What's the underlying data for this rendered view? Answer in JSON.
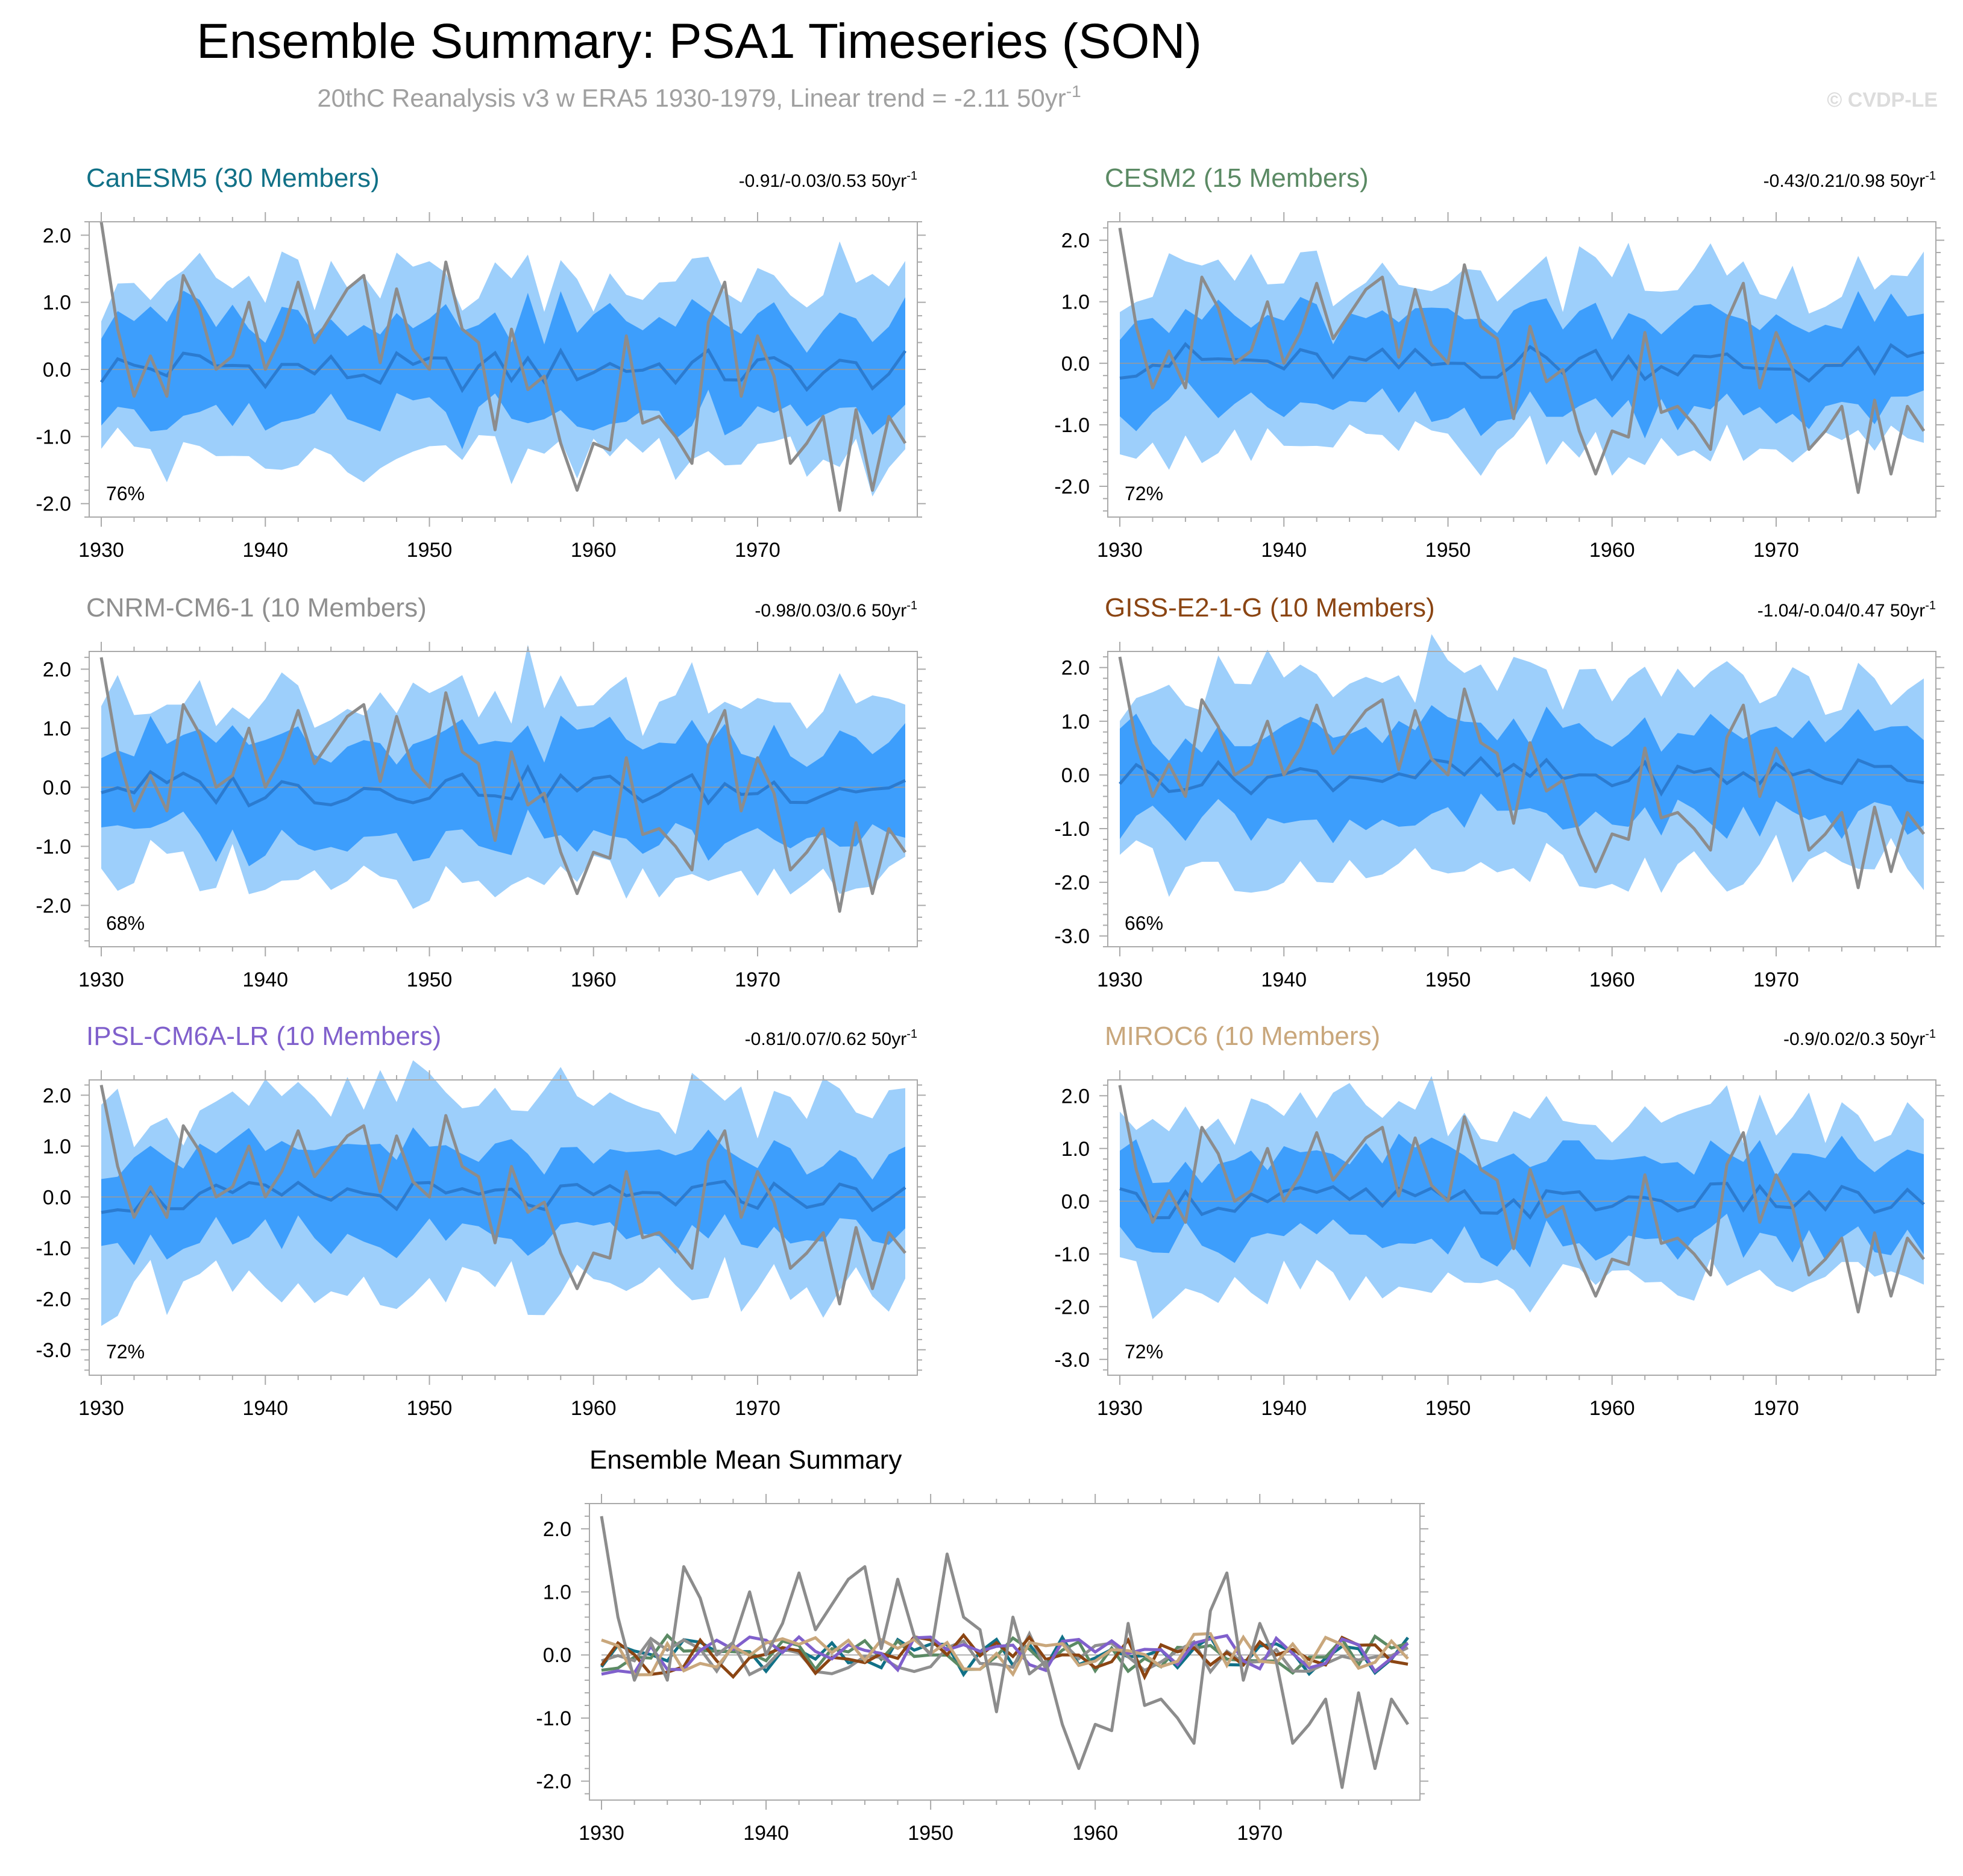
{
  "header": {
    "title": "Ensemble Summary: PSA1 Timeseries (SON)",
    "subtitle": "20thC Reanalysis v3 w ERA5 1930-1979, Linear trend = -2.11 50yr",
    "subtitle_sup": "-1",
    "watermark": "© CVDP-LE"
  },
  "colors": {
    "light_band": "#9dcffb",
    "dark_band": "#3d9efc",
    "ens_mean": "#2b7bd0",
    "obs": "#8c8c8c",
    "frame": "#aaaaaa"
  },
  "chart_data": [
    {
      "type": "line",
      "title": "CanESM5 (30 Members)",
      "title_color": "#117187",
      "trend": "-0.91/-0.03/0.53 50yr",
      "trend_sup": "-1",
      "percent": "76%",
      "ylim": [
        -2.2,
        2.2
      ],
      "yticks": [
        "2.0",
        "1.0",
        "0.0",
        "-1.0",
        "-2.0"
      ],
      "ytick_values": [
        2,
        1,
        0,
        -1,
        -2
      ],
      "xticks": [
        "1930",
        "1940",
        "1950",
        "1960",
        "1970"
      ],
      "x_range": [
        1930,
        1979
      ],
      "obs_scale": 1.0,
      "spread": [
        1.3,
        0.75,
        0.45
      ],
      "wobble": 0.0
    },
    {
      "type": "line",
      "title": "CESM2 (15 Members)",
      "title_color": "#5b8a64",
      "trend": "-0.43/0.21/0.98 50yr",
      "trend_sup": "-1",
      "percent": "72%",
      "ylim": [
        -2.5,
        2.3
      ],
      "yticks": [
        "2.0",
        "1.0",
        "0.0",
        "-1.0",
        "-2.0"
      ],
      "ytick_values": [
        2,
        1,
        0,
        -1,
        -2
      ],
      "xticks": [
        "1930",
        "1940",
        "1950",
        "1960",
        "1970"
      ],
      "x_range": [
        1930,
        1979
      ],
      "obs_scale": 1.0,
      "spread": [
        1.4,
        0.75,
        0.55
      ],
      "wobble": 1.0
    },
    {
      "type": "line",
      "title": "CNRM-CM6-1 (10 Members)",
      "title_color": "#8f8f8f",
      "trend": "-0.98/0.03/0.6 50yr",
      "trend_sup": "-1",
      "percent": "68%",
      "ylim": [
        -2.7,
        2.3
      ],
      "yticks": [
        "2.0",
        "1.0",
        "0.0",
        "-1.0",
        "-2.0"
      ],
      "ytick_values": [
        2,
        1,
        0,
        -1,
        -2
      ],
      "xticks": [
        "1930",
        "1940",
        "1950",
        "1960",
        "1970"
      ],
      "x_range": [
        1930,
        1979
      ],
      "obs_scale": 1.0,
      "spread": [
        1.5,
        0.8,
        0.6
      ],
      "wobble": 2.0
    },
    {
      "type": "line",
      "title": "GISS-E2-1-G (10 Members)",
      "title_color": "#8b4513",
      "trend": "-1.04/-0.04/0.47 50yr",
      "trend_sup": "-1",
      "percent": "66%",
      "ylim": [
        -3.2,
        2.3
      ],
      "yticks": [
        "2.0",
        "1.0",
        "0.0",
        "-1.0",
        "-2.0",
        "-3.0"
      ],
      "ytick_values": [
        2,
        1,
        0,
        -1,
        -2,
        -3
      ],
      "xticks": [
        "1930",
        "1940",
        "1950",
        "1960",
        "1970"
      ],
      "x_range": [
        1930,
        1979
      ],
      "obs_scale": 1.0,
      "spread": [
        1.7,
        0.8,
        0.55
      ],
      "wobble": 3.0
    },
    {
      "type": "line",
      "title": "IPSL-CM6A-LR (10 Members)",
      "title_color": "#8060cc",
      "trend": "-0.81/0.07/0.62 50yr",
      "trend_sup": "-1",
      "percent": "72%",
      "ylim": [
        -3.5,
        2.3
      ],
      "yticks": [
        "2.0",
        "1.0",
        "0.0",
        "-1.0",
        "-2.0",
        "-3.0"
      ],
      "ytick_values": [
        2,
        1,
        0,
        -1,
        -2,
        -3
      ],
      "xticks": [
        "1930",
        "1940",
        "1950",
        "1960",
        "1970"
      ],
      "x_range": [
        1930,
        1979
      ],
      "obs_scale": 1.0,
      "spread": [
        1.8,
        0.85,
        0.6
      ],
      "wobble": 4.0
    },
    {
      "type": "line",
      "title": "MIROC6 (10 Members)",
      "title_color": "#c9a77c",
      "trend": "-0.9/0.02/0.3 50yr",
      "trend_sup": "-1",
      "percent": "72%",
      "ylim": [
        -3.3,
        2.3
      ],
      "yticks": [
        "2.0",
        "1.0",
        "0.0",
        "-1.0",
        "-2.0",
        "-3.0"
      ],
      "ytick_values": [
        2,
        1,
        0,
        -1,
        -2,
        -3
      ],
      "xticks": [
        "1930",
        "1940",
        "1950",
        "1960",
        "1970"
      ],
      "x_range": [
        1930,
        1979
      ],
      "obs_scale": 1.0,
      "spread": [
        1.6,
        0.8,
        0.5
      ],
      "wobble": 5.0
    },
    {
      "type": "line",
      "title": "Ensemble Mean Summary",
      "title_color": "#000000",
      "ylim": [
        -2.3,
        2.4
      ],
      "yticks": [
        "2.0",
        "1.0",
        "0.0",
        "-1.0",
        "-2.0"
      ],
      "ytick_values": [
        2,
        1,
        0,
        -1,
        -2
      ],
      "xticks": [
        "1930",
        "1940",
        "1950",
        "1960",
        "1970"
      ],
      "x_range": [
        1930,
        1979
      ],
      "series_colors": [
        "#117187",
        "#5b8a64",
        "#8f8f8f",
        "#8b4513",
        "#8060cc",
        "#c9a77c"
      ]
    }
  ],
  "obs_series": {
    "name": "20thC Reanalysis v3 w ERA5",
    "x": [
      1930,
      1931,
      1932,
      1933,
      1934,
      1935,
      1936,
      1937,
      1938,
      1939,
      1940,
      1941,
      1942,
      1943,
      1944,
      1945,
      1946,
      1947,
      1948,
      1949,
      1950,
      1951,
      1952,
      1953,
      1954,
      1955,
      1956,
      1957,
      1958,
      1959,
      1960,
      1961,
      1962,
      1963,
      1964,
      1965,
      1966,
      1967,
      1968,
      1969,
      1970,
      1971,
      1972,
      1973,
      1974,
      1975,
      1976,
      1977,
      1978,
      1979
    ],
    "values": [
      2.2,
      0.6,
      -0.4,
      0.2,
      -0.4,
      1.4,
      0.9,
      0.0,
      0.2,
      1.0,
      0.0,
      0.5,
      1.3,
      0.4,
      0.8,
      1.2,
      1.4,
      0.1,
      1.2,
      0.3,
      0.0,
      1.6,
      0.6,
      0.4,
      -0.9,
      0.6,
      -0.3,
      -0.1,
      -1.1,
      -1.8,
      -1.1,
      -1.2,
      0.5,
      -0.8,
      -0.7,
      -1.0,
      -1.4,
      0.7,
      1.3,
      -0.4,
      0.5,
      -0.1,
      -1.4,
      -1.1,
      -0.7,
      -2.1,
      -0.6,
      -1.8,
      -0.7,
      -1.1
    ]
  }
}
